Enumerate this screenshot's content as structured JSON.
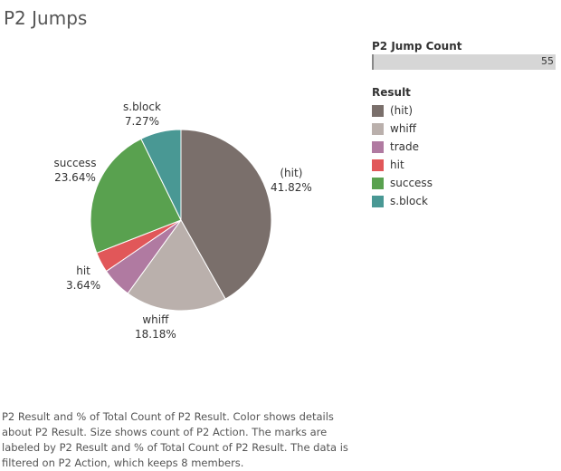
{
  "title": "P2 Jumps",
  "legend": {
    "size_heading": "P2 Jump Count",
    "size_value": "55",
    "color_heading": "Result",
    "items": [
      {
        "label": "(hit)",
        "color": "#7a6f6b"
      },
      {
        "label": "whiff",
        "color": "#bab0ac"
      },
      {
        "label": "trade",
        "color": "#b07aa1"
      },
      {
        "label": "hit",
        "color": "#e15759"
      },
      {
        "label": "success",
        "color": "#59a14f"
      },
      {
        "label": "s.block",
        "color": "#499894"
      }
    ]
  },
  "chart_data": {
    "type": "pie",
    "title": "P2 Jumps",
    "slices": [
      {
        "label": "(hit)",
        "percent": 41.82,
        "percent_label": "41.82%",
        "color": "#7a6f6b",
        "show_label": true
      },
      {
        "label": "whiff",
        "percent": 18.18,
        "percent_label": "18.18%",
        "color": "#bab0ac",
        "show_label": true
      },
      {
        "label": "trade",
        "percent": 5.45,
        "percent_label": "",
        "color": "#b07aa1",
        "show_label": false
      },
      {
        "label": "hit",
        "percent": 3.64,
        "percent_label": "3.64%",
        "color": "#e15759",
        "show_label": true
      },
      {
        "label": "success",
        "percent": 23.64,
        "percent_label": "23.64%",
        "color": "#59a14f",
        "show_label": true
      },
      {
        "label": "s.block",
        "percent": 7.27,
        "percent_label": "7.27%",
        "color": "#499894",
        "show_label": true
      }
    ]
  },
  "caption": "P2 Result and % of Total Count of P2 Result.  Color shows details about P2 Result.  Size shows count of P2 Action.  The marks are labeled by P2 Result and % of Total Count of P2 Result. The data is filtered on P2 Action, which keeps 8 members."
}
